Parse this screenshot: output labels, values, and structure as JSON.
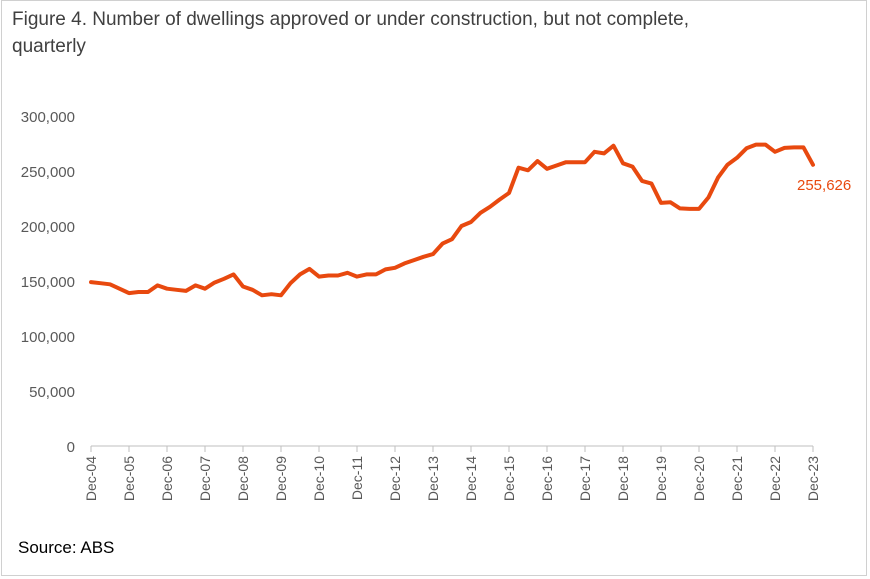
{
  "chart_data": {
    "type": "line",
    "title": "Figure 4. Number of dwellings approved or under construction,  but not complete, quarterly",
    "xlabel": "",
    "ylabel": "",
    "ylim": [
      0,
      300000
    ],
    "yticks": [
      "0",
      "50,000",
      "100,000",
      "150,000",
      "200,000",
      "250,000",
      "300,000"
    ],
    "xticks": [
      "Dec-04",
      "Dec-05",
      "Dec-06",
      "Dec-07",
      "Dec-08",
      "Dec-09",
      "Dec-10",
      "Dec-11",
      "Dec-12",
      "Dec-13",
      "Dec-14",
      "Dec-15",
      "Dec-16",
      "Dec-17",
      "Dec-18",
      "Dec-19",
      "Dec-20",
      "Dec-21",
      "Dec-22",
      "Dec-23"
    ],
    "grid": false,
    "line_color": "#E8490F",
    "x_start": "Dec-04",
    "frequency": "quarterly",
    "series": [
      {
        "values": [
          149000,
          148000,
          147000,
          143000,
          139000,
          140000,
          140000,
          146000,
          143000,
          142000,
          141000,
          146000,
          143000,
          148500,
          152000,
          156000,
          145000,
          142000,
          137000,
          138000,
          137000,
          148000,
          156000,
          161000,
          154000,
          155000,
          155000,
          157500,
          154000,
          156000,
          156000,
          160500,
          162000,
          166000,
          169000,
          172000,
          174500,
          184000,
          188000,
          200000,
          203600,
          212000,
          217500,
          224000,
          230000,
          253000,
          250600,
          259000,
          252000,
          255000,
          258000,
          258000,
          258000,
          267500,
          266000,
          273000,
          257000,
          254000,
          241000,
          238500,
          221000,
          221500,
          216000,
          215500,
          215500,
          226000,
          244000,
          255700,
          262000,
          270600,
          274000,
          274000,
          267500,
          271000,
          271500,
          271500,
          255626
        ]
      }
    ],
    "annotation": "255,626",
    "source": "Source: ABS"
  }
}
